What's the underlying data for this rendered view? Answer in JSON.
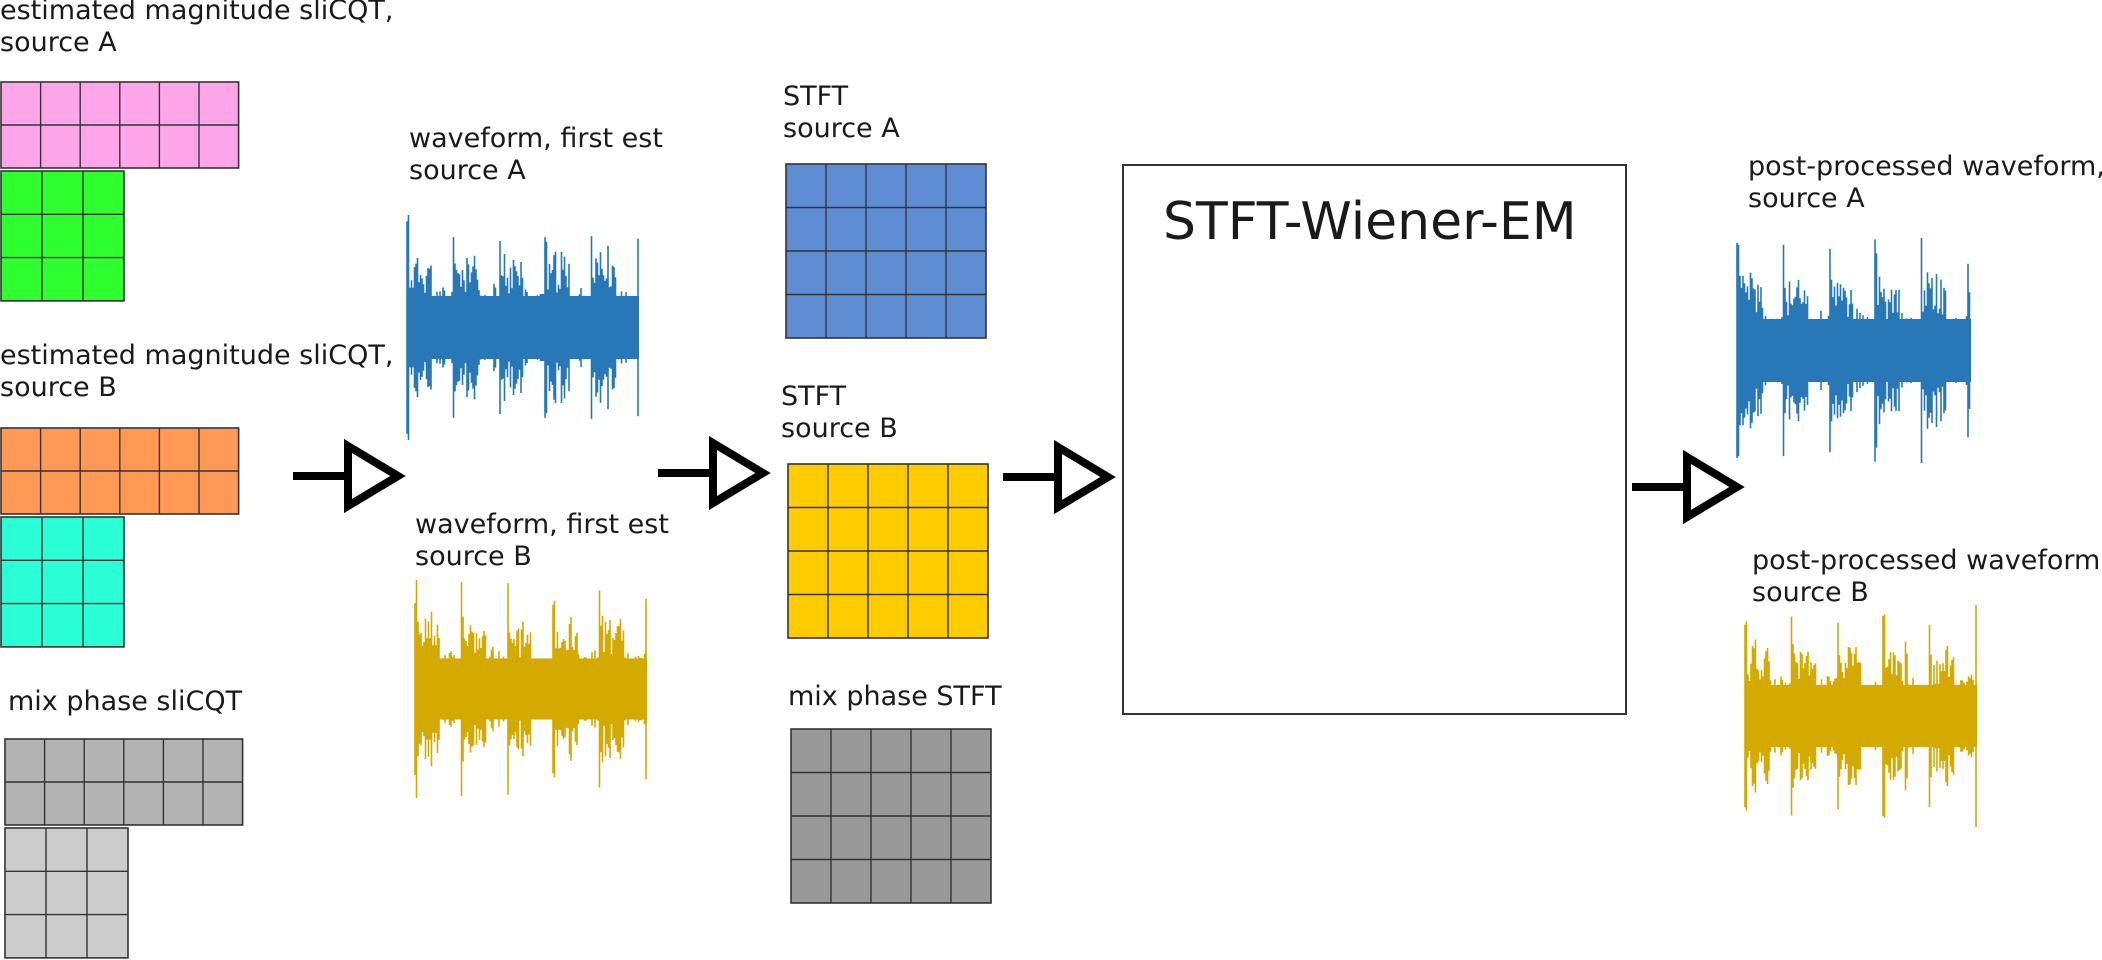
{
  "left_column": {
    "mag_a": {
      "label": "estimated magnitude sliCQT,\nsource A",
      "colors": {
        "wide": "#ffa6eb",
        "narrow": "#2eff2e"
      }
    },
    "mag_b": {
      "label": "estimated magnitude sliCQT,\nsource B",
      "colors": {
        "wide": "#ff9955",
        "narrow": "#2affd5"
      }
    },
    "mix_phase": {
      "label": "mix phase sliCQT",
      "colors": {
        "wide": "#b3b3b3",
        "narrow": "#cccccc"
      }
    }
  },
  "waveforms_first": {
    "a": {
      "label": "waveform, first est\nsource A",
      "color": "#2878b8"
    },
    "b": {
      "label": "waveform, first est\nsource B",
      "color": "#d4aa00"
    }
  },
  "stft_column": {
    "a": {
      "label": "STFT\nsource A",
      "color": "#5f8dd3"
    },
    "b": {
      "label": "STFT\nsource B",
      "color": "#ffcc00"
    },
    "mix_phase": {
      "label": "mix phase STFT",
      "color": "#999999"
    }
  },
  "wiener_box": {
    "title": "STFT-Wiener-EM",
    "colors": {
      "a": "#5f8dd3",
      "b": "#ffcc00",
      "phase": "#999999"
    }
  },
  "post_processed": {
    "a": {
      "label": "post-processed waveform,\nsource A",
      "color": "#2878b8"
    },
    "b": {
      "label": "post-processed waveform,\nsource B",
      "color": "#d4aa00"
    }
  },
  "arrow_icons": [
    "arrow-right-icon",
    "arrow-right-icon",
    "arrow-right-icon",
    "arrow-right-icon"
  ]
}
